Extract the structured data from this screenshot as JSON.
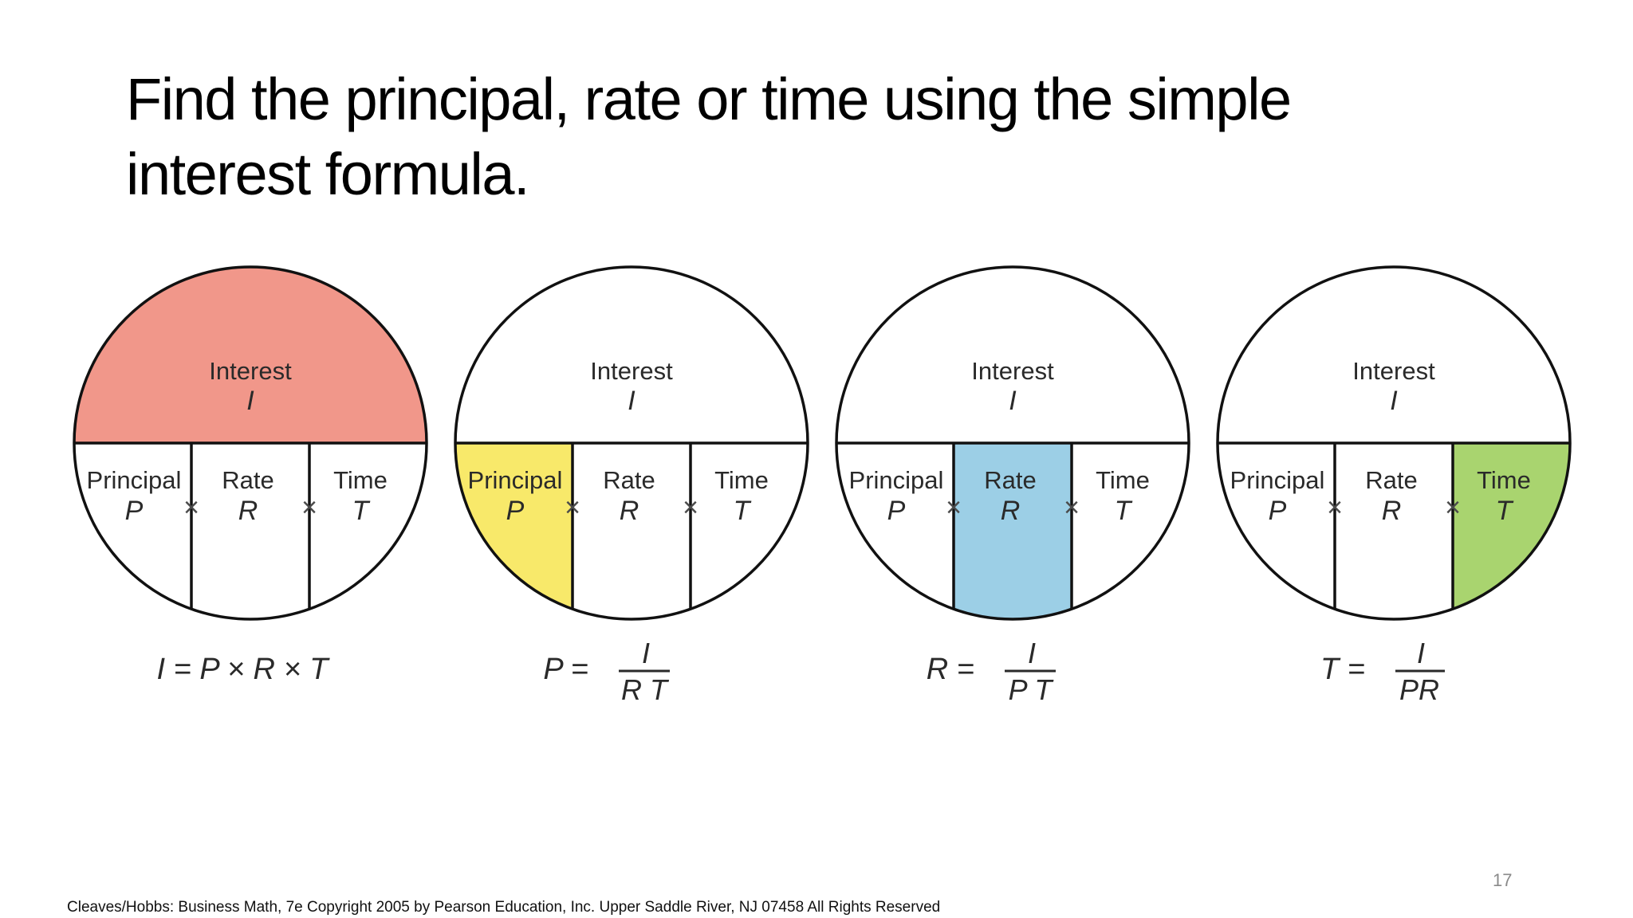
{
  "title": "Find the principal, rate or time using the simple interest formula.",
  "footer": "Cleaves/Hobbs: Business Math, 7e  Copyright 2005 by Pearson Education, Inc. Upper Saddle River, NJ 07458  All Rights Reserved",
  "page_number": "17",
  "labels": {
    "interest": "Interest",
    "interest_symbol": "I",
    "principal": "Principal",
    "principal_symbol": "P",
    "rate": "Rate",
    "rate_symbol": "R",
    "time": "Time",
    "time_symbol": "T",
    "times_sign": "×"
  },
  "colors": {
    "interest": "#F1978A",
    "principal": "#F8E96A",
    "rate": "#9CCFE6",
    "time": "#A9D46F",
    "outline": "#111111"
  },
  "circles": [
    {
      "highlight": "interest",
      "formula": "I = P × R × T"
    },
    {
      "highlight": "principal",
      "formula_lhs": "P =",
      "numerator": "I",
      "denominator": "R T"
    },
    {
      "highlight": "rate",
      "formula_lhs": "R =",
      "numerator": "I",
      "denominator": "P T"
    },
    {
      "highlight": "time",
      "formula_lhs": "T =",
      "numerator": "I",
      "denominator": "PR"
    }
  ]
}
